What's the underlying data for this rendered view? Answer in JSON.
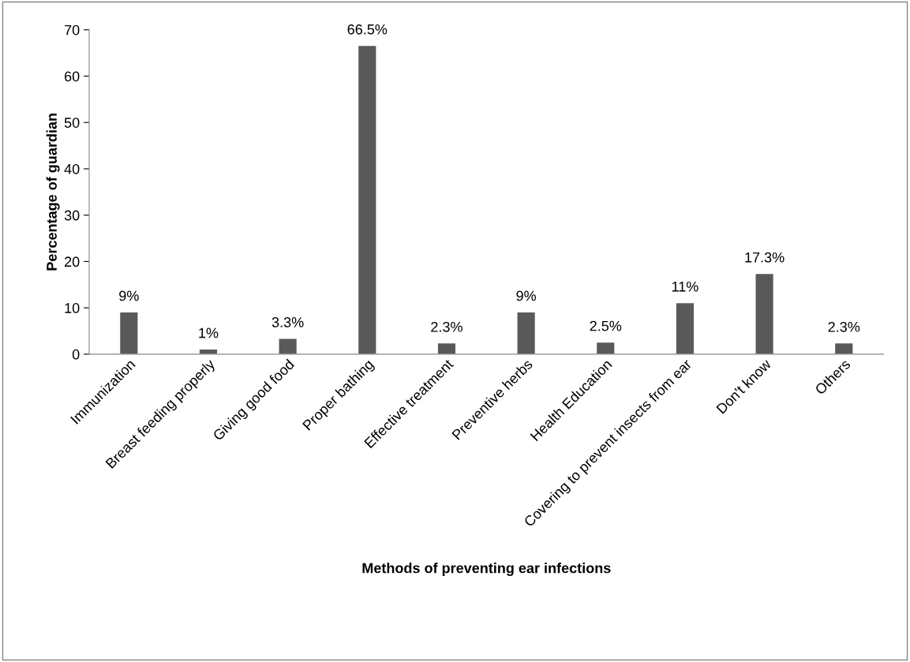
{
  "chart_data": {
    "type": "bar",
    "xlabel": "Methods of preventing ear infections",
    "ylabel": "Percentage of guardian",
    "categories": [
      "Immunization",
      "Breast feeding properly",
      "Giving good food",
      "Proper bathing",
      "Effective treatment",
      "Preventive herbs",
      "Health Education",
      "Covering to prevent insects from ear",
      "Don't know",
      "Others"
    ],
    "values": [
      9,
      1,
      3.3,
      66.5,
      2.3,
      9,
      2.5,
      11,
      17.3,
      2.3
    ],
    "value_labels": [
      "9%",
      "1%",
      "3.3%",
      "66.5%",
      "2.3%",
      "9%",
      "2.5%",
      "11%",
      "17.3%",
      "2.3%"
    ],
    "color": "#595959",
    "ylim": [
      0,
      70
    ],
    "yticks": [
      0,
      10,
      20,
      30,
      40,
      50,
      60,
      70
    ],
    "grid": false,
    "legend": false
  }
}
